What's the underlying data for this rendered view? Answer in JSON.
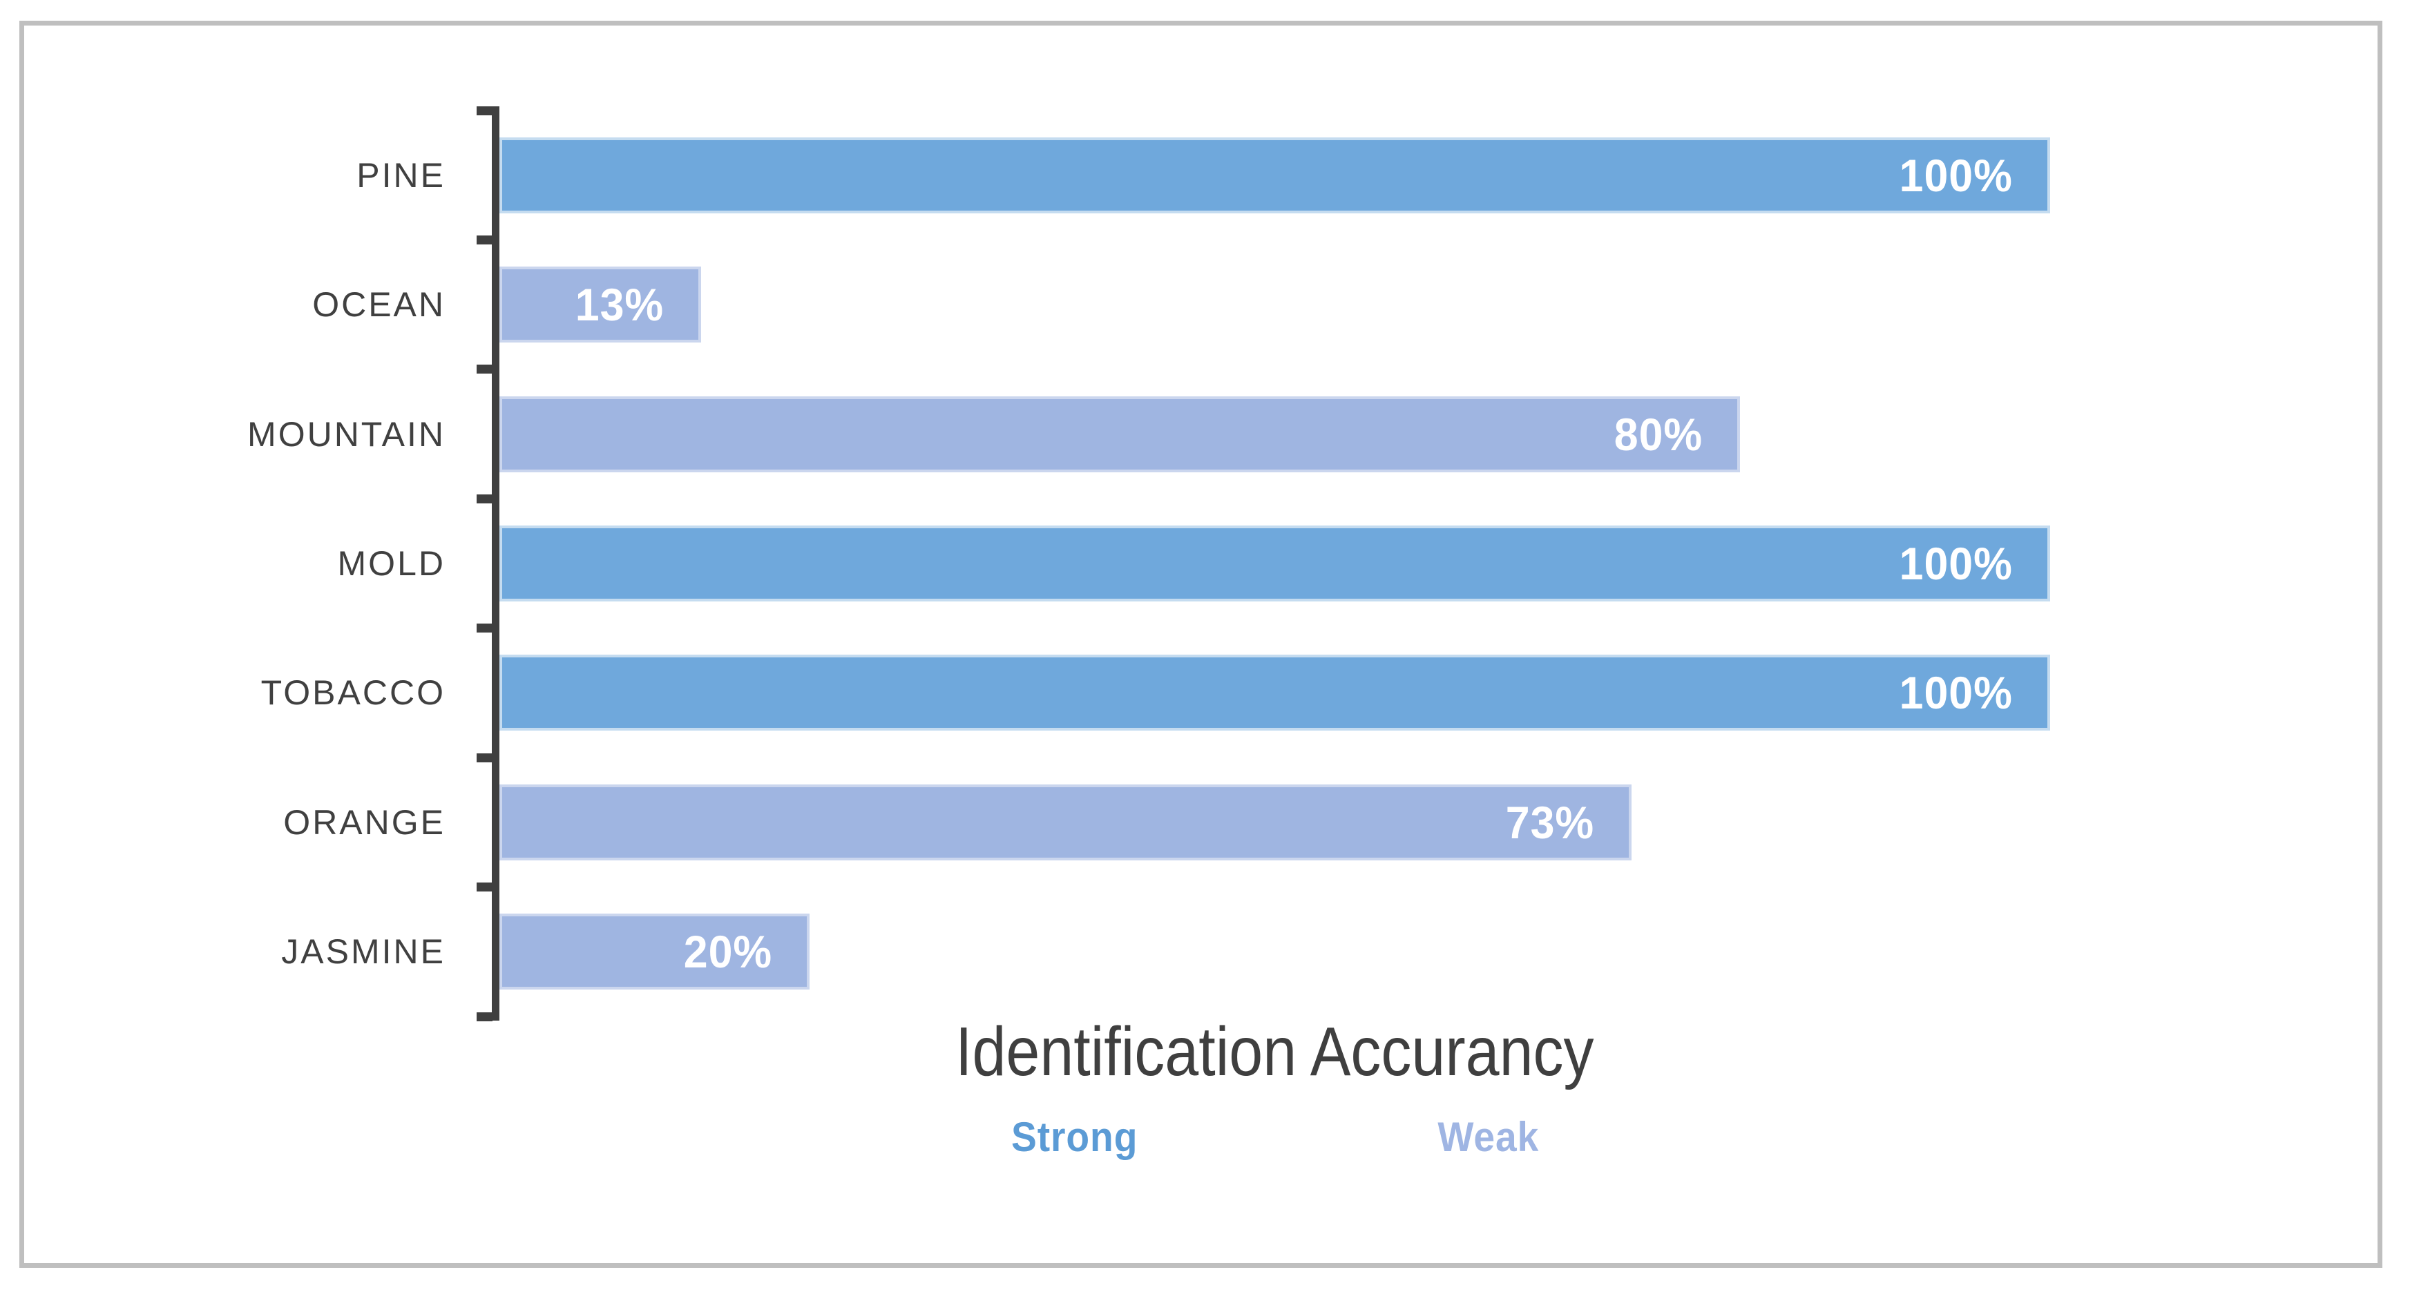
{
  "frame": {
    "border_color": "#BFBFBF",
    "background": "#FFFFFF"
  },
  "chart_data": {
    "type": "bar",
    "orientation": "horizontal",
    "title": "Identification Accurancy",
    "xlabel": "",
    "ylabel": "",
    "xlim": [
      0,
      100
    ],
    "gridlines": false,
    "legend_position": "below-title",
    "categories": [
      "PINE",
      "OCEAN",
      "MOUNTAIN",
      "MOLD",
      "TOBACCO",
      "ORANGE",
      "JASMINE"
    ],
    "series": [
      {
        "name": "Strong",
        "fill_color": "#6FA8DC",
        "border_color": "#C5DCF0",
        "legend_text_color": "#5B9BD5"
      },
      {
        "name": "Weak",
        "fill_color": "#9FB5E1",
        "border_color": "#CBD6EE",
        "legend_text_color": "#9FB5E3"
      }
    ],
    "bars": [
      {
        "category": "PINE",
        "value": 100,
        "label": "100%",
        "series": "Strong"
      },
      {
        "category": "OCEAN",
        "value": 13,
        "label": "13%",
        "series": "Weak"
      },
      {
        "category": "MOUNTAIN",
        "value": 80,
        "label": "80%",
        "series": "Weak"
      },
      {
        "category": "MOLD",
        "value": 100,
        "label": "100%",
        "series": "Strong"
      },
      {
        "category": "TOBACCO",
        "value": 100,
        "label": "100%",
        "series": "Strong"
      },
      {
        "category": "ORANGE",
        "value": 73,
        "label": "73%",
        "series": "Weak"
      },
      {
        "category": "JASMINE",
        "value": 20,
        "label": "20%",
        "series": "Weak"
      }
    ],
    "value_label_color": "#FFFFFF",
    "category_label_color": "#404040",
    "axis_color": "#3F3F3F",
    "title_color": "#3F3F3F"
  }
}
